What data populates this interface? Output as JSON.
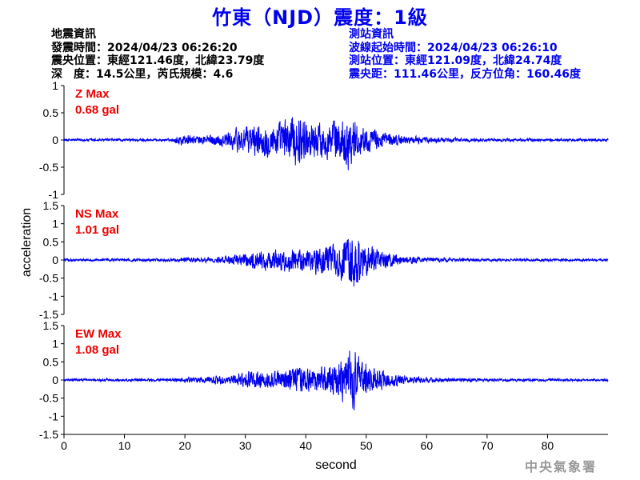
{
  "title": "竹東（NJD）震度：1級",
  "event": {
    "heading": "地震資訊",
    "origin_time": "發震時間：2024/04/23 06:26:20",
    "epicenter": "震央位置：東經121.46度，北緯23.79度",
    "depth_magnitude": "深　度：14.5公里，芮氏規模：4.6"
  },
  "station": {
    "heading": "測站資訊",
    "wave_start": "波線起始時間：2024/04/23 06:26:10",
    "location": "測站位置：東經121.09度，北緯24.74度",
    "distance": "震央距：111.46公里，反方位角：160.46度"
  },
  "footer_credit": "中央氣象署",
  "colors": {
    "trace": "#0000ee",
    "max_label": "#ee0000",
    "title": "#0000ee",
    "axis": "#000000"
  },
  "chart_data": {
    "type": "line",
    "xlabel": "second",
    "ylabel": "acceleration",
    "xlim": [
      0,
      90
    ],
    "xticks": [
      0,
      10,
      20,
      30,
      40,
      50,
      60,
      70,
      80
    ],
    "series": [
      {
        "name": "Z Max",
        "max_label": "0.68 gal",
        "ylim": [
          -1,
          1
        ],
        "yticks": [
          1,
          0.5,
          0,
          -0.5,
          -1
        ],
        "ytick_labels": [
          "1",
          "0.5",
          "0",
          "-0.5",
          "-1"
        ],
        "envelope": {
          "t": [
            0,
            18,
            19,
            20,
            22,
            25,
            27,
            29,
            31,
            33,
            36,
            38,
            39,
            40,
            43,
            46,
            47,
            48,
            50,
            53,
            56,
            60,
            65,
            70,
            80,
            90
          ],
          "amp": [
            0.03,
            0.03,
            0.15,
            0.12,
            0.1,
            0.13,
            0.18,
            0.3,
            0.35,
            0.35,
            0.42,
            0.65,
            0.55,
            0.45,
            0.4,
            0.5,
            0.62,
            0.45,
            0.28,
            0.18,
            0.1,
            0.07,
            0.05,
            0.04,
            0.03,
            0.03
          ]
        }
      },
      {
        "name": "NS Max",
        "max_label": "1.01 gal",
        "ylim": [
          -1.5,
          1.5
        ],
        "yticks": [
          1.5,
          1,
          0.5,
          0,
          -0.5,
          -1,
          -1.5
        ],
        "ytick_labels": [
          "1.5",
          "1",
          "0.5",
          "0",
          "-0.5",
          "-1",
          "-1.5"
        ],
        "envelope": {
          "t": [
            0,
            18,
            20,
            23,
            27,
            30,
            33,
            36,
            38,
            40,
            43,
            45,
            47,
            48,
            50,
            52,
            55,
            58,
            62,
            66,
            70,
            80,
            90
          ],
          "amp": [
            0.04,
            0.05,
            0.1,
            0.08,
            0.12,
            0.25,
            0.35,
            0.4,
            0.45,
            0.35,
            0.45,
            0.6,
            0.9,
            1.0,
            0.6,
            0.35,
            0.2,
            0.12,
            0.08,
            0.06,
            0.05,
            0.04,
            0.04
          ]
        }
      },
      {
        "name": "EW Max",
        "max_label": "1.08 gal",
        "ylim": [
          -1.5,
          1.5
        ],
        "yticks": [
          1.5,
          1,
          0.5,
          0,
          -0.5,
          -1,
          -1.5
        ],
        "ytick_labels": [
          "1.5",
          "1",
          "0.5",
          "0",
          "-0.5",
          "-1",
          "-1.5"
        ],
        "envelope": {
          "t": [
            0,
            18,
            20,
            23,
            25,
            27,
            29,
            31,
            33,
            36,
            38,
            40,
            43,
            45,
            47,
            48,
            50,
            52,
            55,
            58,
            62,
            66,
            70,
            80,
            90
          ],
          "amp": [
            0.04,
            0.05,
            0.1,
            0.1,
            0.16,
            0.12,
            0.25,
            0.32,
            0.3,
            0.3,
            0.48,
            0.38,
            0.42,
            0.55,
            0.95,
            1.05,
            0.6,
            0.35,
            0.2,
            0.12,
            0.08,
            0.06,
            0.05,
            0.04,
            0.04
          ]
        }
      }
    ]
  }
}
